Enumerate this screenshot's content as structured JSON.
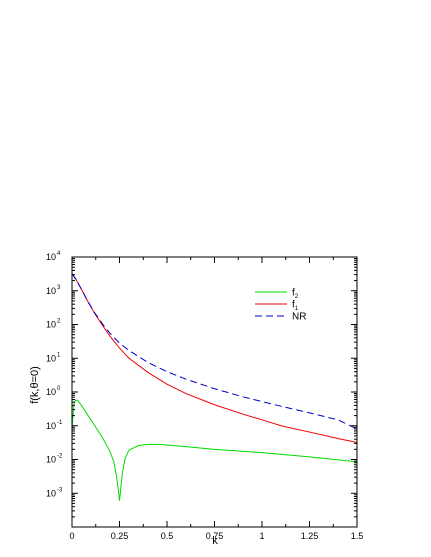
{
  "chart_data": {
    "type": "line",
    "xlabel": "k",
    "ylabel": "f(k,θ=0)",
    "xlim": [
      0,
      1.5
    ],
    "ylim": [
      0.0001,
      10000
    ],
    "yscale": "log",
    "x_ticks": [
      0,
      0.25,
      0.5,
      0.75,
      1,
      1.25,
      1.5
    ],
    "x_tick_labels": [
      "0",
      "0.25",
      "0.5",
      "0.75",
      "1",
      "1.25",
      "1.5"
    ],
    "y_ticks": [
      {
        "value": 0.001,
        "base": "10",
        "exp": "-3"
      },
      {
        "value": 0.01,
        "base": "10",
        "exp": "-2"
      },
      {
        "value": 0.1,
        "base": "10",
        "exp": "-1"
      },
      {
        "value": 1,
        "base": "10",
        "exp": "0"
      },
      {
        "value": 10,
        "base": "10",
        "exp": "1"
      },
      {
        "value": 100,
        "base": "10",
        "exp": "2"
      },
      {
        "value": 1000,
        "base": "10",
        "exp": "3"
      },
      {
        "value": 10000,
        "base": "10",
        "exp": "4"
      }
    ],
    "grid": false,
    "legend_position": "top-right",
    "series": [
      {
        "name": "f",
        "subscript": "2",
        "color": "#00dd00",
        "style": "solid",
        "x": [
          0.0,
          0.01,
          0.02,
          0.03,
          0.05,
          0.08,
          0.12,
          0.16,
          0.2,
          0.22,
          0.235,
          0.245,
          0.25,
          0.255,
          0.265,
          0.28,
          0.3,
          0.35,
          0.4,
          0.45,
          0.5,
          0.6,
          0.75,
          1.0,
          1.25,
          1.5
        ],
        "y": [
          0.08,
          0.45,
          0.58,
          0.56,
          0.4,
          0.22,
          0.1,
          0.045,
          0.017,
          0.0085,
          0.003,
          0.0011,
          0.0006,
          0.0011,
          0.004,
          0.011,
          0.019,
          0.026,
          0.028,
          0.028,
          0.027,
          0.024,
          0.02,
          0.016,
          0.012,
          0.0085
        ]
      },
      {
        "name": "f",
        "subscript": "1",
        "color": "#ee0000",
        "style": "solid",
        "x": [
          0.0,
          0.02,
          0.05,
          0.08,
          0.12,
          0.16,
          0.2,
          0.25,
          0.3,
          0.4,
          0.5,
          0.6,
          0.75,
          0.9,
          1.0,
          1.1,
          1.25,
          1.4,
          1.5
        ],
        "y": [
          3200,
          2200,
          1100,
          520,
          210,
          95,
          45,
          20,
          10,
          3.8,
          1.7,
          0.9,
          0.42,
          0.22,
          0.15,
          0.1,
          0.065,
          0.042,
          0.032
        ]
      },
      {
        "name": "NR",
        "subscript": "",
        "color": "#0000cc",
        "style": "dashed",
        "x": [
          0.0,
          0.02,
          0.05,
          0.08,
          0.12,
          0.16,
          0.2,
          0.25,
          0.3,
          0.4,
          0.5,
          0.6,
          0.75,
          0.9,
          1.0,
          1.1,
          1.25,
          1.4,
          1.5
        ],
        "y": [
          3200,
          2200,
          1100,
          520,
          220,
          105,
          55,
          28,
          17,
          7.5,
          4.0,
          2.4,
          1.25,
          0.72,
          0.52,
          0.38,
          0.24,
          0.15,
          0.08
        ]
      }
    ]
  }
}
